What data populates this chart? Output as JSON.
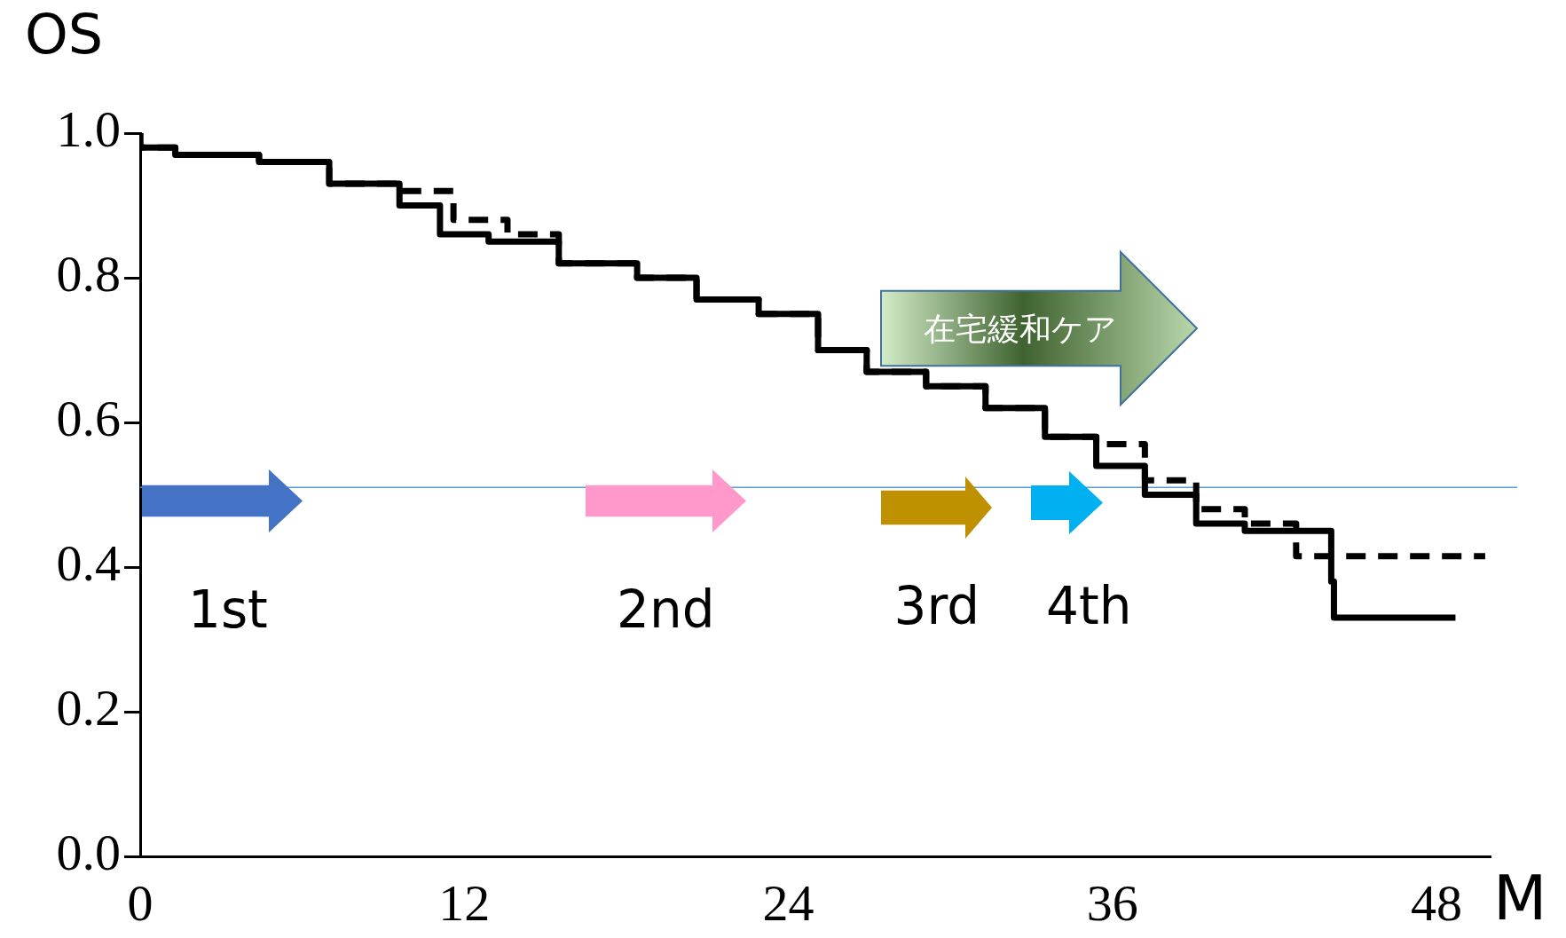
{
  "chart_data": {
    "type": "step",
    "ylabel": "OS",
    "xlabel": "M",
    "xlim": [
      0,
      50
    ],
    "xticks": [
      0,
      12,
      24,
      36,
      48
    ],
    "ylim": [
      0,
      1
    ],
    "yticks": [
      {
        "value": 0,
        "label": "0.0"
      },
      {
        "value": 0.2,
        "label": "0.2"
      },
      {
        "value": 0.4,
        "label": "0.4"
      },
      {
        "value": 0.6,
        "label": "0.6"
      },
      {
        "value": 0.8,
        "label": "0.8"
      },
      {
        "value": 1,
        "label": "1.0"
      }
    ],
    "grid": false,
    "legend": false,
    "marker": "none",
    "series": [
      {
        "color": "#000000",
        "line_style": "solid",
        "x": [
          0,
          1.3,
          4.4,
          7,
          9.6,
          11.1,
          12.9,
          15.5,
          18.4,
          20.6,
          22.9,
          25.1,
          26.9,
          29.1,
          31.3,
          33.5,
          35.4,
          37.2,
          39.1,
          40.9,
          42.8,
          44.1,
          44.2,
          45.3,
          48.7
        ],
        "values": [
          1,
          0.98,
          0.97,
          0.96,
          0.93,
          0.9,
          0.86,
          0.85,
          0.82,
          0.8,
          0.77,
          0.75,
          0.7,
          0.67,
          0.65,
          0.62,
          0.58,
          0.54,
          0.5,
          0.46,
          0.45,
          0.45,
          0.38,
          0.33,
          0.33
        ]
      },
      {
        "color": "#000000",
        "line_style": "dashed",
        "x": [
          0,
          1.3,
          4.4,
          7,
          9.6,
          11.6,
          13.6,
          15.5,
          18.4,
          20.6,
          22.9,
          25.1,
          26.9,
          29.1,
          31.3,
          33.5,
          35.4,
          37.2,
          39.1,
          40.9,
          42.8,
          44.8,
          49.8
        ],
        "values": [
          1,
          0.98,
          0.97,
          0.96,
          0.93,
          0.92,
          0.88,
          0.86,
          0.82,
          0.8,
          0.77,
          0.75,
          0.7,
          0.67,
          0.65,
          0.62,
          0.58,
          0.57,
          0.52,
          0.48,
          0.46,
          0.415,
          0.415
        ]
      }
    ],
    "ref_lines": [
      {
        "axis": "y",
        "value": 0.51,
        "color": "#5b9bd5"
      }
    ],
    "annotations": [
      "1st",
      "2nd",
      "3rd",
      "4th",
      "在宅緩和ケア"
    ]
  }
}
